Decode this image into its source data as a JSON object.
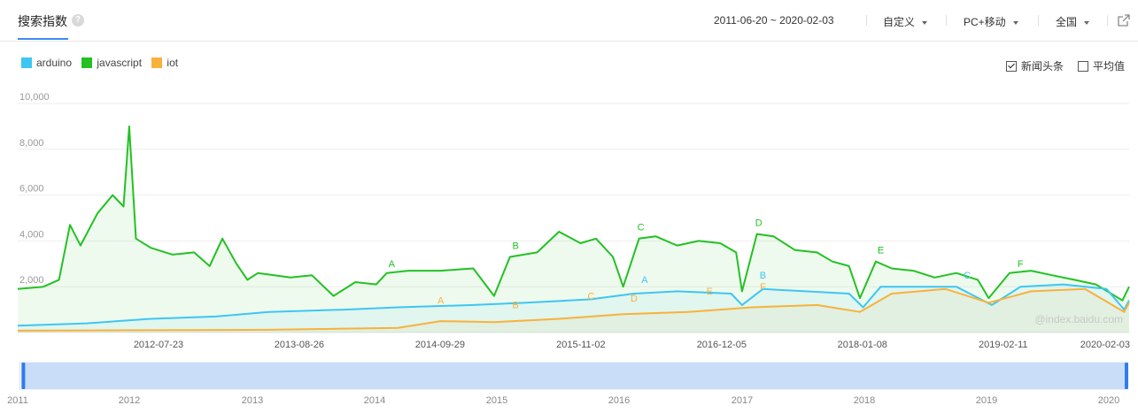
{
  "header": {
    "title": "搜索指数",
    "help": "?",
    "date_range": "2011-06-20 ~ 2020-02-03",
    "custom": "自定义",
    "device": "PC+移动",
    "region": "全国"
  },
  "legend": [
    {
      "name": "arduino",
      "color": "#3ec6f2"
    },
    {
      "name": "javascript",
      "color": "#23c123"
    },
    {
      "name": "iot",
      "color": "#f8b13c"
    }
  ],
  "options": {
    "news_label": "新闻头条",
    "news_checked": true,
    "avg_label": "平均值",
    "avg_checked": false
  },
  "watermark": "@index.baidu.com",
  "chart_data": {
    "type": "line",
    "title": "",
    "xlabel": "",
    "ylabel": "",
    "x_start": "2011-06-20",
    "x_end": "2020-02-03",
    "ylim": [
      0,
      10000
    ],
    "y_ticks": [
      "2,000",
      "4,000",
      "6,000",
      "8,000",
      "10,000"
    ],
    "y_tick_values": [
      2000,
      4000,
      6000,
      8000,
      10000
    ],
    "x_ticks": [
      "2012-07-23",
      "2013-08-26",
      "2014-09-29",
      "2015-11-02",
      "2016-12-05",
      "2018-01-08",
      "2019-02-11",
      "2020-02-03"
    ],
    "grid": true,
    "series": [
      {
        "name": "javascript",
        "color": "#23c123",
        "points": [
          [
            "2011-06-20",
            1900
          ],
          [
            "2011-09-01",
            2000
          ],
          [
            "2011-10-15",
            2300
          ],
          [
            "2011-11-15",
            4700
          ],
          [
            "2011-12-15",
            3800
          ],
          [
            "2012-02-01",
            5200
          ],
          [
            "2012-03-15",
            6000
          ],
          [
            "2012-04-15",
            5500
          ],
          [
            "2012-05-01",
            9000
          ],
          [
            "2012-05-20",
            4100
          ],
          [
            "2012-07-01",
            3700
          ],
          [
            "2012-09-01",
            3400
          ],
          [
            "2012-11-01",
            3500
          ],
          [
            "2012-12-15",
            2900
          ],
          [
            "2013-01-20",
            4100
          ],
          [
            "2013-03-01",
            3000
          ],
          [
            "2013-04-01",
            2300
          ],
          [
            "2013-05-01",
            2600
          ],
          [
            "2013-08-01",
            2400
          ],
          [
            "2013-10-01",
            2500
          ],
          [
            "2013-12-01",
            1600
          ],
          [
            "2014-02-01",
            2200
          ],
          [
            "2014-04-01",
            2100
          ],
          [
            "2014-05-01",
            2600
          ],
          [
            "2014-07-01",
            2700
          ],
          [
            "2014-10-01",
            2700
          ],
          [
            "2015-01-01",
            2800
          ],
          [
            "2015-03-01",
            1600
          ],
          [
            "2015-04-15",
            3300
          ],
          [
            "2015-07-01",
            3500
          ],
          [
            "2015-09-01",
            4400
          ],
          [
            "2015-11-01",
            3900
          ],
          [
            "2015-12-15",
            4100
          ],
          [
            "2016-02-01",
            3300
          ],
          [
            "2016-03-01",
            2000
          ],
          [
            "2016-04-15",
            4100
          ],
          [
            "2016-06-01",
            4200
          ],
          [
            "2016-08-01",
            3800
          ],
          [
            "2016-10-01",
            4000
          ],
          [
            "2016-12-01",
            3900
          ],
          [
            "2017-01-15",
            3500
          ],
          [
            "2017-02-01",
            1800
          ],
          [
            "2017-03-15",
            4300
          ],
          [
            "2017-05-01",
            4200
          ],
          [
            "2017-07-01",
            3600
          ],
          [
            "2017-09-01",
            3500
          ],
          [
            "2017-10-15",
            3100
          ],
          [
            "2017-12-01",
            2900
          ],
          [
            "2018-01-01",
            1500
          ],
          [
            "2018-02-15",
            3100
          ],
          [
            "2018-04-01",
            2800
          ],
          [
            "2018-06-01",
            2700
          ],
          [
            "2018-08-01",
            2400
          ],
          [
            "2018-10-01",
            2600
          ],
          [
            "2018-12-01",
            2300
          ],
          [
            "2019-01-01",
            1500
          ],
          [
            "2019-03-01",
            2600
          ],
          [
            "2019-05-01",
            2700
          ],
          [
            "2019-07-01",
            2500
          ],
          [
            "2019-09-01",
            2300
          ],
          [
            "2019-11-01",
            2100
          ],
          [
            "2020-01-15",
            1400
          ],
          [
            "2020-02-03",
            2000
          ]
        ]
      },
      {
        "name": "arduino",
        "color": "#3ec6f2",
        "points": [
          [
            "2011-06-20",
            300
          ],
          [
            "2012-01-01",
            400
          ],
          [
            "2012-07-01",
            600
          ],
          [
            "2013-01-01",
            700
          ],
          [
            "2013-06-01",
            900
          ],
          [
            "2014-01-01",
            1000
          ],
          [
            "2014-06-01",
            1100
          ],
          [
            "2015-01-01",
            1200
          ],
          [
            "2015-06-01",
            1300
          ],
          [
            "2015-12-01",
            1450
          ],
          [
            "2016-04-01",
            1700
          ],
          [
            "2016-08-01",
            1800
          ],
          [
            "2017-01-01",
            1700
          ],
          [
            "2017-02-01",
            1200
          ],
          [
            "2017-04-01",
            1900
          ],
          [
            "2017-08-01",
            1800
          ],
          [
            "2017-12-01",
            1700
          ],
          [
            "2018-01-10",
            1100
          ],
          [
            "2018-03-01",
            2000
          ],
          [
            "2018-06-01",
            2000
          ],
          [
            "2018-10-01",
            2000
          ],
          [
            "2019-01-10",
            1200
          ],
          [
            "2019-04-01",
            2000
          ],
          [
            "2019-08-01",
            2100
          ],
          [
            "2019-12-01",
            1900
          ],
          [
            "2020-01-20",
            1000
          ],
          [
            "2020-02-03",
            1400
          ]
        ]
      },
      {
        "name": "iot",
        "color": "#f8b13c",
        "points": [
          [
            "2011-06-20",
            80
          ],
          [
            "2012-06-01",
            100
          ],
          [
            "2013-06-01",
            120
          ],
          [
            "2014-06-01",
            200
          ],
          [
            "2014-10-01",
            500
          ],
          [
            "2015-03-01",
            450
          ],
          [
            "2015-09-01",
            600
          ],
          [
            "2016-03-01",
            800
          ],
          [
            "2016-09-01",
            900
          ],
          [
            "2017-03-01",
            1100
          ],
          [
            "2017-09-01",
            1200
          ],
          [
            "2018-01-01",
            900
          ],
          [
            "2018-04-01",
            1700
          ],
          [
            "2018-09-01",
            1900
          ],
          [
            "2019-01-01",
            1300
          ],
          [
            "2019-05-01",
            1800
          ],
          [
            "2019-10-01",
            1900
          ],
          [
            "2020-01-20",
            900
          ],
          [
            "2020-02-03",
            1300
          ]
        ]
      }
    ],
    "annotations": [
      {
        "label": "A",
        "series": "javascript",
        "date": "2014-05-15",
        "value": 2700
      },
      {
        "label": "B",
        "series": "javascript",
        "date": "2015-05-01",
        "value": 3500
      },
      {
        "label": "C",
        "series": "javascript",
        "date": "2016-04-20",
        "value": 4300
      },
      {
        "label": "D",
        "series": "javascript",
        "date": "2017-03-20",
        "value": 4500
      },
      {
        "label": "E",
        "series": "javascript",
        "date": "2018-03-01",
        "value": 3300
      },
      {
        "label": "F",
        "series": "javascript",
        "date": "2019-04-01",
        "value": 2700
      },
      {
        "label": "A",
        "series": "arduino",
        "date": "2016-05-01",
        "value": 2000
      },
      {
        "label": "B",
        "series": "arduino",
        "date": "2017-04-01",
        "value": 2200
      },
      {
        "label": "C",
        "series": "arduino",
        "date": "2018-11-01",
        "value": 2200
      },
      {
        "label": "A",
        "series": "iot",
        "date": "2014-10-01",
        "value": 1100
      },
      {
        "label": "B",
        "series": "iot",
        "date": "2015-05-01",
        "value": 900
      },
      {
        "label": "C",
        "series": "iot",
        "date": "2015-12-01",
        "value": 1300
      },
      {
        "label": "D",
        "series": "iot",
        "date": "2016-04-01",
        "value": 1200
      },
      {
        "label": "E",
        "series": "iot",
        "date": "2016-11-01",
        "value": 1500
      },
      {
        "label": "F",
        "series": "iot",
        "date": "2017-04-01",
        "value": 1700
      }
    ],
    "range_slider": {
      "years": [
        "2011",
        "2012",
        "2013",
        "2014",
        "2015",
        "2016",
        "2017",
        "2018",
        "2019",
        "2020"
      ],
      "start": "2011-07-01",
      "end": "2020-02-03"
    }
  }
}
